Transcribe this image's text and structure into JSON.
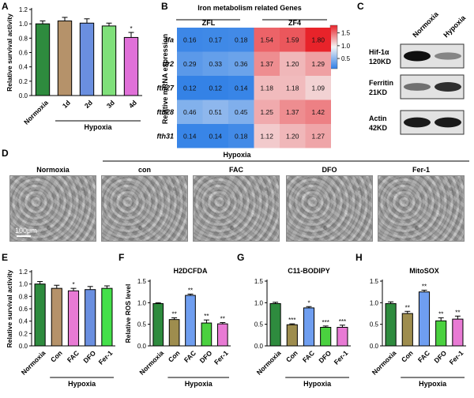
{
  "colors": {
    "dark_green": "#2e8b3e",
    "tan": "#b5926a",
    "blue": "#6a8fe0",
    "light_green": "#7fe07a",
    "magenta": "#e070d8",
    "pink": "#e87ad4",
    "olive": "#9e8d4e",
    "cornflower": "#6f9ef0",
    "bright_green": "#4ad13f",
    "lime": "#44e04a",
    "heat_low": "#2f7fe6",
    "heat_mid": "#f4f4f4",
    "heat_high": "#e8232a"
  },
  "panels": {
    "A": "A",
    "B": "B",
    "C": "C",
    "D": "D",
    "E": "E",
    "F": "F",
    "G": "G",
    "H": "H"
  },
  "hypoxia_label": "Hypoxia",
  "chart_data": [
    {
      "panel": "A",
      "type": "bar",
      "ylabel": "Relative survival activity",
      "ylim": [
        0,
        1.2
      ],
      "yticks": [
        "0.0",
        "0.2",
        "0.4",
        "0.6",
        "0.8",
        "1.0",
        "1.2"
      ],
      "categories": [
        "Normoxia",
        "1d",
        "2d",
        "3d",
        "4d"
      ],
      "values": [
        1.0,
        1.04,
        1.01,
        0.97,
        0.81
      ],
      "errors": [
        0.04,
        0.05,
        0.06,
        0.04,
        0.07
      ],
      "sig": [
        "",
        "",
        "",
        "",
        "*"
      ],
      "group_label": "Hypoxia"
    },
    {
      "panel": "B",
      "type": "heatmap",
      "title": "Iron metabolism related Genes",
      "groups": [
        "ZFL",
        "ZF4"
      ],
      "ylabel": "Relative mRNA expression",
      "rows": [
        "tfa",
        "tfr2",
        "fth27",
        "fth28",
        "fth31"
      ],
      "values": [
        [
          0.16,
          0.17,
          0.18,
          1.54,
          1.59,
          1.8
        ],
        [
          0.29,
          0.33,
          0.36,
          1.37,
          1.2,
          1.29
        ],
        [
          0.12,
          0.12,
          0.14,
          1.18,
          1.18,
          1.09
        ],
        [
          0.46,
          0.51,
          0.45,
          1.25,
          1.37,
          1.42
        ],
        [
          0.14,
          0.14,
          0.18,
          1.12,
          1.2,
          1.27
        ]
      ],
      "labels": [
        [
          "0.16",
          "0.17",
          "0.18",
          "1.54",
          "1.59",
          "1.80"
        ],
        [
          "0.29",
          "0.33",
          "0.36",
          "1.37",
          "1.20",
          "1.29"
        ],
        [
          "0.12",
          "0.12",
          "0.14",
          "1.18",
          "1.18",
          "1.09"
        ],
        [
          "0.46",
          "0.51",
          "0.45",
          "1.25",
          "1.37",
          "1.42"
        ],
        [
          "0.14",
          "0.14",
          "0.18",
          "1.12",
          "1.20",
          "1.27"
        ]
      ],
      "scale_ticks": [
        "1.5",
        "1.0",
        "0.5"
      ],
      "scale_range": [
        0.1,
        1.8
      ]
    },
    {
      "panel": "C",
      "type": "western_blot",
      "lanes": [
        "Normoxia",
        "Hypoxia"
      ],
      "proteins": [
        {
          "name": "Hif-1α",
          "size": "120KD",
          "intensity": [
            1.0,
            0.45
          ]
        },
        {
          "name": "Ferritin",
          "size": "21KD",
          "intensity": [
            0.55,
            0.85
          ]
        },
        {
          "name": "Actin",
          "size": "42KD",
          "intensity": [
            0.95,
            0.95
          ]
        }
      ]
    },
    {
      "panel": "D",
      "type": "image_panel",
      "images": [
        "Normoxia",
        "con",
        "FAC",
        "DFO",
        "Fer-1"
      ],
      "scale_label": "100μm",
      "group_label": "Hypoxia"
    },
    {
      "panel": "E",
      "type": "bar",
      "ylabel": "Relative survival activity",
      "ylim": [
        0,
        1.2
      ],
      "yticks": [
        "0.0",
        "0.2",
        "0.4",
        "0.6",
        "0.8",
        "1.0",
        "1.2"
      ],
      "categories": [
        "Normoxia",
        "Con",
        "FAC",
        "DFO",
        "Fer-1"
      ],
      "values": [
        1.0,
        0.93,
        0.89,
        0.91,
        0.93
      ],
      "errors": [
        0.04,
        0.05,
        0.04,
        0.05,
        0.04
      ],
      "sig": [
        "",
        "",
        "*",
        "",
        ""
      ],
      "group_label": "Hypoxia"
    },
    {
      "panel": "F",
      "type": "bar",
      "title": "H2DCFDA",
      "ylabel": "Relative ROS level",
      "ylim": [
        0,
        1.5
      ],
      "yticks": [
        "0.0",
        "0.5",
        "1.0",
        "1.5"
      ],
      "categories": [
        "Normoxia",
        "Con",
        "FAC",
        "DFO",
        "Fer-1"
      ],
      "values": [
        0.98,
        0.61,
        1.17,
        0.53,
        0.51
      ],
      "errors": [
        0.02,
        0.04,
        0.03,
        0.07,
        0.03
      ],
      "sig": [
        "",
        "**",
        "**",
        "**",
        "**"
      ],
      "group_label": "Hypoxia"
    },
    {
      "panel": "G",
      "type": "bar",
      "title": "C11-BODIPY",
      "ylim": [
        0,
        1.5
      ],
      "yticks": [
        "0.0",
        "0.5",
        "1.0",
        "1.5"
      ],
      "categories": [
        "Normoxia",
        "Con",
        "FAC",
        "DFO",
        "Fer-1"
      ],
      "values": [
        0.98,
        0.49,
        0.88,
        0.43,
        0.43
      ],
      "errors": [
        0.03,
        0.02,
        0.03,
        0.03,
        0.05
      ],
      "sig": [
        "",
        "***",
        "*",
        "***",
        "***"
      ],
      "group_label": "Hypoxia"
    },
    {
      "panel": "H",
      "type": "bar",
      "title": "MitoSOX",
      "ylim": [
        0,
        1.5
      ],
      "yticks": [
        "0.0",
        "0.5",
        "1.0",
        "1.5"
      ],
      "categories": [
        "Normoxia",
        "Con",
        "FAC",
        "DFO",
        "Fer-1"
      ],
      "values": [
        0.98,
        0.75,
        1.25,
        0.58,
        0.62
      ],
      "errors": [
        0.04,
        0.05,
        0.04,
        0.07,
        0.07
      ],
      "sig": [
        "",
        "**",
        "**",
        "**",
        "**"
      ],
      "group_label": "Hypoxia"
    }
  ]
}
